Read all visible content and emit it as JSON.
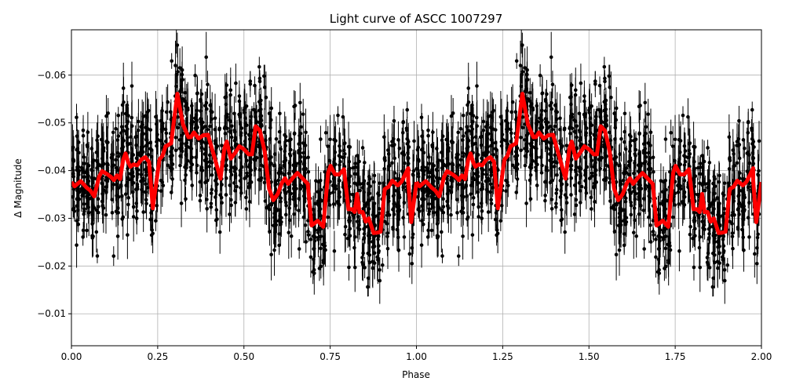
{
  "chart_data": {
    "type": "scatter",
    "title": "Light curve of ASCC 1007297",
    "xlabel": "Phase",
    "ylabel": "Δ Magnitude",
    "xlim": [
      0.0,
      2.0
    ],
    "ylim": [
      -0.0695,
      -0.0033
    ],
    "y_inverted": true,
    "grid": true,
    "legend": null,
    "x_ticks": [
      "0.00",
      "0.25",
      "0.50",
      "0.75",
      "1.00",
      "1.25",
      "1.50",
      "1.75",
      "2.00"
    ],
    "x_tick_values": [
      0.0,
      0.25,
      0.5,
      0.75,
      1.0,
      1.25,
      1.5,
      1.75,
      2.0
    ],
    "y_ticks": [
      "−0.06",
      "−0.05",
      "−0.04",
      "−0.03",
      "−0.02",
      "−0.01"
    ],
    "y_tick_values": [
      -0.06,
      -0.05,
      -0.04,
      -0.03,
      -0.02,
      -0.01
    ],
    "series": [
      {
        "name": "observations",
        "kind": "errorbar-scatter",
        "color": "#000000",
        "description": "Dense black points with vertical error bars spanning roughly -0.07 to -0.003 across all phases, repeated for phases 1–2"
      },
      {
        "name": "binned model",
        "kind": "line",
        "color": "#ff0000",
        "linewidth": 5,
        "period_repeat": true,
        "x": [
          0.0,
          0.009,
          0.027,
          0.043,
          0.055,
          0.066,
          0.08,
          0.089,
          0.105,
          0.114,
          0.123,
          0.132,
          0.141,
          0.15,
          0.157,
          0.164,
          0.171,
          0.18,
          0.191,
          0.202,
          0.214,
          0.225,
          0.236,
          0.246,
          0.255,
          0.264,
          0.273,
          0.289,
          0.307,
          0.323,
          0.339,
          0.346,
          0.355,
          0.369,
          0.382,
          0.396,
          0.432,
          0.443,
          0.45,
          0.462,
          0.475,
          0.487,
          0.501,
          0.514,
          0.523,
          0.534,
          0.546,
          0.56,
          0.573,
          0.585,
          0.598,
          0.61,
          0.619,
          0.628,
          0.642,
          0.655,
          0.685,
          0.696,
          0.714,
          0.73,
          0.744,
          0.751,
          0.764,
          0.776,
          0.79,
          0.803,
          0.814,
          0.821,
          0.828,
          0.835,
          0.844,
          0.853,
          0.862,
          0.876,
          0.887,
          0.896,
          0.908,
          0.919,
          0.93,
          0.946,
          0.957,
          0.976,
          0.976,
          0.985,
          1.0
        ],
        "y": [
          -0.0376,
          -0.0367,
          -0.0378,
          -0.0365,
          -0.0358,
          -0.0346,
          -0.0387,
          -0.0399,
          -0.0392,
          -0.0387,
          -0.038,
          -0.039,
          -0.0382,
          -0.0423,
          -0.0436,
          -0.0418,
          -0.0408,
          -0.0413,
          -0.0411,
          -0.0423,
          -0.0428,
          -0.0418,
          -0.0321,
          -0.0375,
          -0.0423,
          -0.0431,
          -0.0451,
          -0.0457,
          -0.0561,
          -0.0497,
          -0.047,
          -0.047,
          -0.048,
          -0.0467,
          -0.0474,
          -0.0475,
          -0.0383,
          -0.0445,
          -0.0461,
          -0.0425,
          -0.0438,
          -0.0451,
          -0.0444,
          -0.0434,
          -0.0434,
          -0.0493,
          -0.0484,
          -0.0441,
          -0.0362,
          -0.0338,
          -0.0351,
          -0.0374,
          -0.0384,
          -0.0372,
          -0.0385,
          -0.0395,
          -0.0372,
          -0.0285,
          -0.0295,
          -0.0282,
          -0.0395,
          -0.041,
          -0.0392,
          -0.0392,
          -0.0403,
          -0.0319,
          -0.0319,
          -0.0313,
          -0.0351,
          -0.0313,
          -0.0313,
          -0.0293,
          -0.03,
          -0.0269,
          -0.027,
          -0.0272,
          -0.0361,
          -0.0366,
          -0.0379,
          -0.0369,
          -0.0377,
          -0.0405,
          -0.0379,
          -0.0292,
          -0.0376
        ]
      }
    ]
  },
  "figure": {
    "background": "#ffffff",
    "grid_color": "#b0b0b0",
    "point_color": "#000000",
    "model_color": "#ff0000"
  }
}
